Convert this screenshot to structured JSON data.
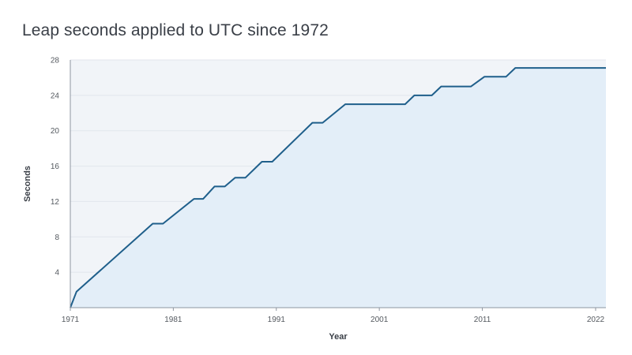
{
  "chart_data": {
    "type": "area",
    "title": "Leap seconds applied to UTC since 1972",
    "xlabel": "Year",
    "ylabel": "Seconds",
    "xlim": [
      1971,
      2023
    ],
    "ylim": [
      0,
      28
    ],
    "x_ticks": [
      {
        "value": 1971,
        "label": "1971"
      },
      {
        "value": 1981,
        "label": "1981"
      },
      {
        "value": 1991,
        "label": "1991"
      },
      {
        "value": 2001,
        "label": "2001"
      },
      {
        "value": 2011,
        "label": "2011"
      },
      {
        "value": 2022,
        "label": "2022"
      }
    ],
    "y_ticks": [
      {
        "value": 4,
        "label": "4"
      },
      {
        "value": 8,
        "label": "8"
      },
      {
        "value": 12,
        "label": "12"
      },
      {
        "value": 16,
        "label": "16"
      },
      {
        "value": 20,
        "label": "20"
      },
      {
        "value": 24,
        "label": "24"
      },
      {
        "value": 28,
        "label": "28"
      }
    ],
    "grid": true,
    "series": [
      {
        "x": [
          1971,
          1971.6,
          1979.0,
          1980.0,
          1983.0,
          1983.9,
          1985.0,
          1986.0,
          1987.0,
          1988.0,
          1989.6,
          1990.6,
          1994.5,
          1995.5,
          1997.7,
          2000.0,
          2003.5,
          2004.4,
          2006.1,
          2007.0,
          2009.9,
          2011.2,
          2013.3,
          2014.2,
          2023.0
        ],
        "y": [
          0,
          1.8,
          9.5,
          9.5,
          12.3,
          12.3,
          13.7,
          13.7,
          14.7,
          14.7,
          16.5,
          16.5,
          20.9,
          20.9,
          23.0,
          23.0,
          23.0,
          24.0,
          24.0,
          25.0,
          25.0,
          26.1,
          26.1,
          27.1,
          27.1
        ]
      }
    ],
    "colors": {
      "line": "#1f5f8b",
      "area": "#e3eef8",
      "plot_background": "#f1f4f8",
      "grid": "#e1e6ec",
      "axis": "#8e96a0"
    }
  }
}
